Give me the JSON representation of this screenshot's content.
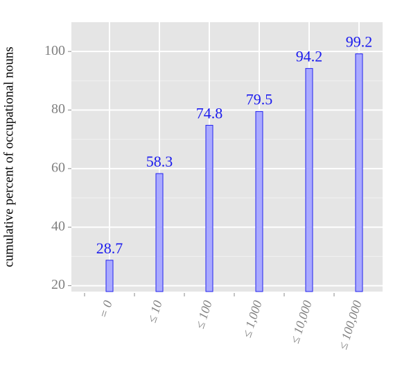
{
  "chart_data": {
    "type": "bar",
    "ylabel": "cumulative percent of occupational nouns",
    "categories": [
      "= 0",
      "≤ 10",
      "≤ 100",
      "≤ 1,000",
      "≤ 10,000",
      "≤ 100,000"
    ],
    "values": [
      28.7,
      58.3,
      74.8,
      79.5,
      94.2,
      99.2
    ],
    "color": "#aaaaff",
    "edge_color": "#2222ee",
    "label_color": "#1a1aee",
    "ylim": [
      18,
      110
    ],
    "yticks": [
      20,
      40,
      60,
      80,
      100
    ],
    "yticks_minor": [
      30,
      50,
      70,
      90
    ],
    "grid": true
  }
}
